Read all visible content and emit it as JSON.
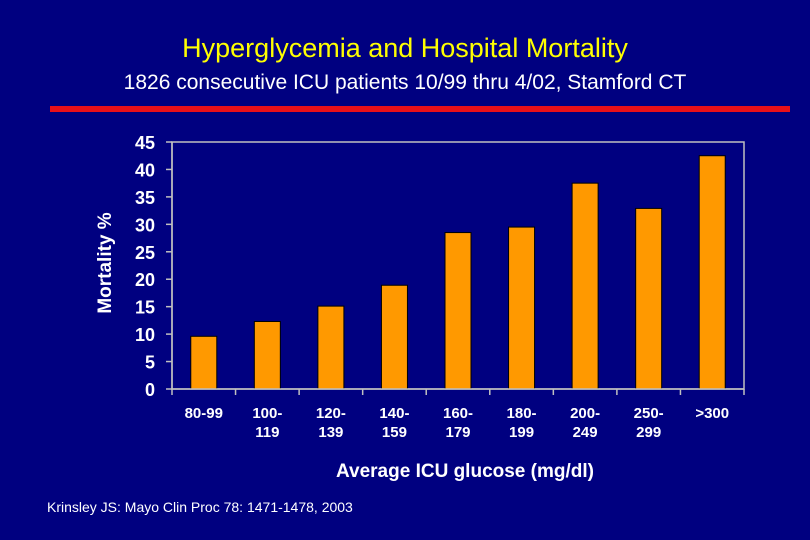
{
  "slide": {
    "title": "Hyperglycemia and Hospital Mortality",
    "subtitle": "1826 consecutive ICU patients 10/99 thru 4/02, Stamford CT",
    "citation": "Krinsley JS: Mayo Clin Proc 78: 1471-1478, 2003"
  },
  "colors": {
    "background": "#000080",
    "title": "#ffff00",
    "text": "#ffffff",
    "rule": "#e8101a",
    "bar": "#ff9900",
    "plot_area": "#000080"
  },
  "chart_data": {
    "type": "bar",
    "title": "",
    "xlabel": "Average ICU glucose (mg/dl)",
    "ylabel": "Mortality %",
    "categories": [
      [
        "80-99"
      ],
      [
        "100-",
        "119"
      ],
      [
        "120-",
        "139"
      ],
      [
        "140-",
        "159"
      ],
      [
        "160-",
        "179"
      ],
      [
        "180-",
        "199"
      ],
      [
        "200-",
        "249"
      ],
      [
        "250-",
        "299"
      ],
      [
        ">300"
      ]
    ],
    "values": [
      9.6,
      12.3,
      15.1,
      18.9,
      28.5,
      29.5,
      37.5,
      32.9,
      42.5
    ],
    "ylim": [
      0,
      45
    ],
    "yticks": [
      0,
      5,
      10,
      15,
      20,
      25,
      30,
      35,
      40,
      45
    ],
    "grid": false,
    "legend": "none"
  }
}
